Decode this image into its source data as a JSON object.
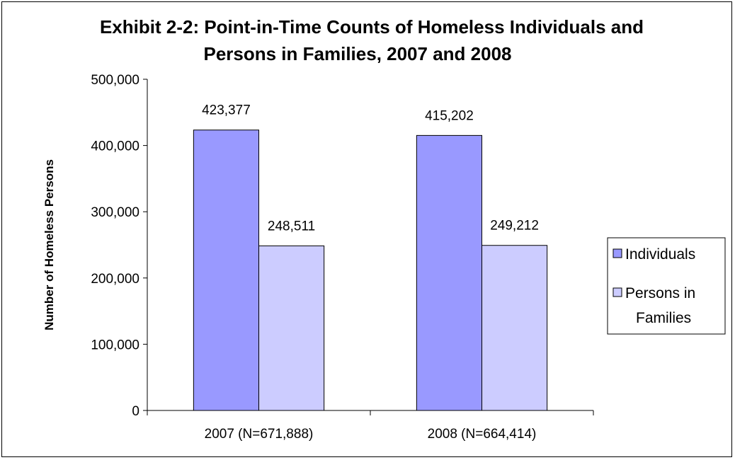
{
  "chart_data": {
    "type": "bar",
    "title": [
      "Exhibit 2-2: Point-in-Time Counts of Homeless Individuals and",
      "Persons in Families, 2007 and 2008"
    ],
    "ylabel": "Number of Homeless Persons",
    "xlabel": "",
    "ylim": [
      0,
      500000
    ],
    "yticks": [
      "0",
      "100,000",
      "200,000",
      "300,000",
      "400,000",
      "500,000"
    ],
    "categories": [
      "2007 (N=671,888)",
      "2008 (N=664,414)"
    ],
    "series": [
      {
        "name": "Individuals",
        "color": "#9999ff",
        "values": [
          423377,
          415202
        ],
        "labels": [
          "423,377",
          "415,202"
        ]
      },
      {
        "name": "Persons in Families",
        "legend_lines": [
          "Persons in",
          "Families"
        ],
        "color": "#ccccff",
        "values": [
          248511,
          249212
        ],
        "labels": [
          "248,511",
          "249,212"
        ]
      }
    ],
    "legend": "right",
    "grid": false
  }
}
